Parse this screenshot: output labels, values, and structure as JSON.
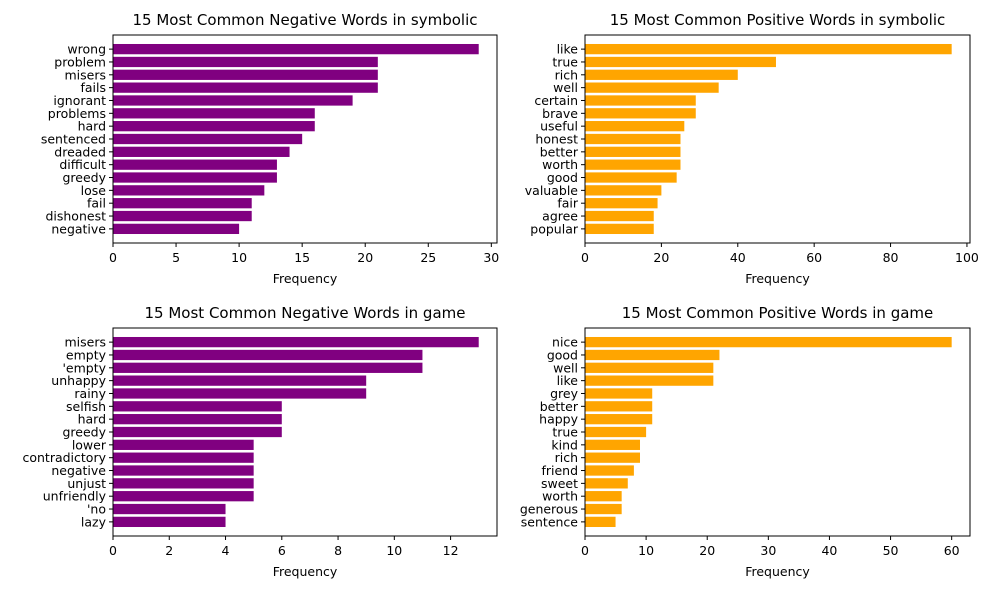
{
  "chart_data": [
    {
      "type": "bar",
      "orientation": "horizontal",
      "title": "15 Most Common Negative Words in symbolic",
      "xlabel": "Frequency",
      "ylabel": "",
      "color": "#800080",
      "xlim": [
        0,
        30.45
      ],
      "xticks": [
        0,
        5,
        10,
        15,
        20,
        25,
        30
      ],
      "categories": [
        "wrong",
        "problem",
        "misers",
        "fails",
        "ignorant",
        "problems",
        "hard",
        "sentenced",
        "dreaded",
        "difficult",
        "greedy",
        "lose",
        "fail",
        "dishonest",
        "negative"
      ],
      "values": [
        29,
        21,
        21,
        21,
        19,
        16,
        16,
        15,
        14,
        13,
        13,
        12,
        11,
        11,
        10
      ]
    },
    {
      "type": "bar",
      "orientation": "horizontal",
      "title": "15 Most Common Positive Words in symbolic",
      "xlabel": "Frequency",
      "ylabel": "",
      "color": "#FFA500",
      "xlim": [
        0,
        100.8
      ],
      "xticks": [
        0,
        20,
        40,
        60,
        80,
        100
      ],
      "categories": [
        "like",
        "true",
        "rich",
        "well",
        "certain",
        "brave",
        "useful",
        "honest",
        "better",
        "worth",
        "good",
        "valuable",
        "fair",
        "agree",
        "popular"
      ],
      "values": [
        96,
        50,
        40,
        35,
        29,
        29,
        26,
        25,
        25,
        25,
        24,
        20,
        19,
        18,
        18
      ]
    },
    {
      "type": "bar",
      "orientation": "horizontal",
      "title": "15 Most Common Negative Words in game",
      "xlabel": "Frequency",
      "ylabel": "",
      "color": "#800080",
      "xlim": [
        0,
        13.65
      ],
      "xticks": [
        0,
        2,
        4,
        6,
        8,
        10,
        12
      ],
      "categories": [
        "misers",
        "empty",
        "'empty",
        "unhappy",
        "rainy",
        "selfish",
        "hard",
        "greedy",
        "lower",
        "contradictory",
        "negative",
        "unjust",
        "unfriendly",
        "'no",
        "lazy"
      ],
      "values": [
        13,
        11,
        11,
        9,
        9,
        6,
        6,
        6,
        5,
        5,
        5,
        5,
        5,
        4,
        4
      ]
    },
    {
      "type": "bar",
      "orientation": "horizontal",
      "title": "15 Most Common Positive Words in game",
      "xlabel": "Frequency",
      "ylabel": "",
      "color": "#FFA500",
      "xlim": [
        0,
        63
      ],
      "xticks": [
        0,
        10,
        20,
        30,
        40,
        50,
        60
      ],
      "categories": [
        "nice",
        "good",
        "well",
        "like",
        "grey",
        "better",
        "happy",
        "true",
        "kind",
        "rich",
        "friend",
        "sweet",
        "worth",
        "generous",
        "sentence"
      ],
      "values": [
        60,
        22,
        21,
        21,
        11,
        11,
        11,
        10,
        9,
        9,
        8,
        7,
        6,
        6,
        5
      ]
    }
  ]
}
